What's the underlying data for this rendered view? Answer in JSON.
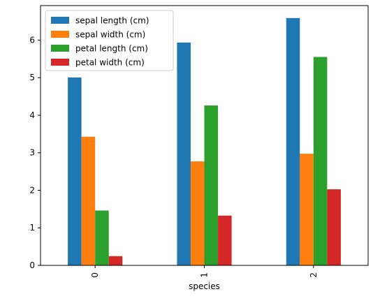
{
  "chart_data": {
    "type": "bar",
    "categories": [
      "0",
      "1",
      "2"
    ],
    "series": [
      {
        "name": "sepal length (cm)",
        "values": [
          5.006,
          5.936,
          6.588
        ],
        "color": "#1f77b4"
      },
      {
        "name": "sepal width (cm)",
        "values": [
          3.428,
          2.77,
          2.974
        ],
        "color": "#ff7f0e"
      },
      {
        "name": "petal length (cm)",
        "values": [
          1.462,
          4.26,
          5.552
        ],
        "color": "#2ca02c"
      },
      {
        "name": "petal width (cm)",
        "values": [
          0.246,
          1.326,
          2.026
        ],
        "color": "#d62728"
      }
    ],
    "title": "",
    "xlabel": "species",
    "ylabel": "",
    "ylim": [
      0,
      6.92
    ],
    "yticks": [
      0,
      1,
      2,
      3,
      4,
      5,
      6
    ],
    "grid": false,
    "legend_position": "top-left",
    "x_tick_rotation": "vertical"
  }
}
